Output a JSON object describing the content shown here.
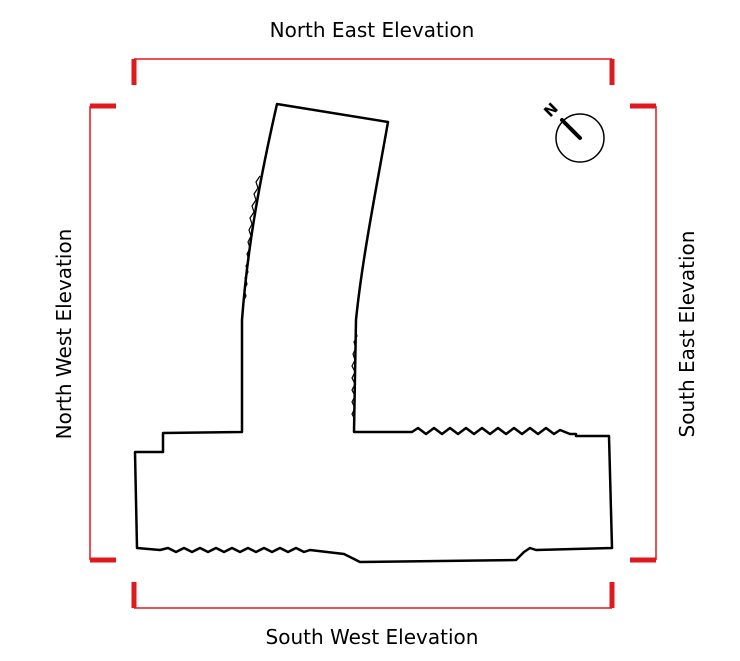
{
  "elevations": {
    "north_east": "North East Elevation",
    "south_west": "South West Elevation",
    "north_west": "North West Elevation",
    "south_east": "South East Elevation"
  },
  "compass": {
    "letter": "N"
  },
  "colors": {
    "bracket": "#e0191f",
    "outline": "#000000",
    "background": "#ffffff"
  }
}
